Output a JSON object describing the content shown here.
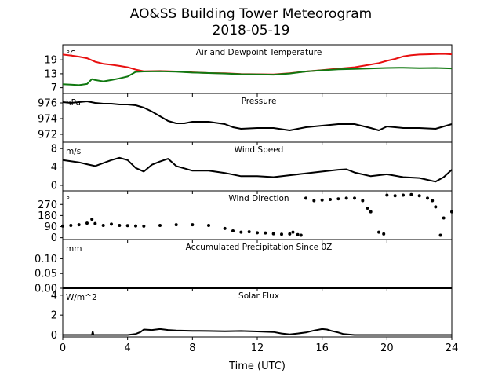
{
  "title_line1": "AO&SS Building Tower Meteorogram",
  "title_line2": "2018-05-19",
  "xlabel": "Time (UTC)",
  "x_ticks": [
    0,
    4,
    8,
    12,
    16,
    20,
    24
  ],
  "x_range": [
    0,
    24
  ],
  "colors": {
    "air_temp": "#e81010",
    "dewpoint": "#107810",
    "black": "#000000"
  },
  "chart_data": [
    {
      "type": "line",
      "title": "Air and Dewpoint Temperature",
      "unit": "°C",
      "ylim": [
        4.5,
        25.5
      ],
      "y_ticks": [
        7,
        13,
        19
      ],
      "series": [
        {
          "color": "#e81010",
          "x": [
            0,
            0.5,
            1,
            1.5,
            2,
            2.5,
            3,
            3.5,
            4,
            4.5,
            5,
            6,
            7,
            8,
            9,
            10,
            11,
            12,
            13,
            14,
            15,
            16,
            17,
            18,
            19,
            19.5,
            20,
            20.5,
            21,
            21.5,
            22,
            22.5,
            23,
            23.5,
            24
          ],
          "y": [
            21.3,
            20.9,
            20.4,
            19.7,
            18.2,
            17.3,
            16.9,
            16.4,
            15.8,
            14.8,
            14.1,
            14.2,
            14.0,
            13.6,
            13.3,
            13.2,
            12.9,
            12.8,
            12.7,
            13.2,
            14.0,
            14.6,
            15.2,
            15.8,
            17.0,
            17.6,
            18.6,
            19.4,
            20.5,
            21.0,
            21.3,
            21.4,
            21.5,
            21.6,
            21.4
          ]
        },
        {
          "color": "#107810",
          "x": [
            0,
            0.5,
            1,
            1.5,
            1.8,
            2,
            2.5,
            3,
            3.5,
            4,
            4.5,
            5,
            6,
            7,
            8,
            9,
            10,
            11,
            12,
            13,
            14,
            15,
            16,
            17,
            18,
            19,
            20,
            21,
            22,
            23,
            24
          ],
          "y": [
            8.5,
            8.3,
            8.1,
            8.6,
            10.7,
            10.3,
            9.7,
            10.3,
            11.0,
            11.8,
            13.8,
            14.0,
            14.1,
            13.9,
            13.5,
            13.3,
            13.1,
            12.8,
            12.7,
            12.6,
            13.1,
            14.0,
            14.5,
            14.9,
            15.1,
            15.3,
            15.5,
            15.6,
            15.4,
            15.5,
            15.3
          ]
        }
      ]
    },
    {
      "type": "line",
      "title": "Pressure",
      "unit": "hPa",
      "ylim": [
        971,
        977.2
      ],
      "y_ticks": [
        972,
        974,
        976
      ],
      "series": [
        {
          "color": "#000000",
          "x": [
            0,
            0.5,
            1,
            1.5,
            2,
            2.5,
            3,
            3.5,
            4,
            4.5,
            5,
            5.5,
            6,
            6.5,
            7,
            7.5,
            8,
            9,
            10,
            10.5,
            11,
            12,
            13,
            14,
            15,
            16,
            17,
            18,
            19,
            19.5,
            20,
            21,
            22,
            23,
            24
          ],
          "y": [
            976.1,
            976.0,
            976.1,
            976.2,
            976.0,
            975.9,
            975.9,
            975.8,
            975.8,
            975.7,
            975.4,
            974.9,
            974.3,
            973.7,
            973.4,
            973.4,
            973.6,
            973.6,
            973.3,
            972.9,
            972.7,
            972.8,
            972.8,
            972.5,
            972.9,
            973.1,
            973.3,
            973.3,
            972.8,
            972.5,
            973.0,
            972.8,
            972.8,
            972.7,
            973.3
          ]
        }
      ]
    },
    {
      "type": "line",
      "title": "Wind Speed",
      "unit": "m/s",
      "ylim": [
        -1.2,
        9.4
      ],
      "y_ticks": [
        0,
        4,
        8
      ],
      "series": [
        {
          "color": "#000000",
          "x": [
            0,
            1,
            1.5,
            2,
            3,
            3.5,
            4,
            4.5,
            5,
            5.5,
            6,
            6.5,
            7,
            8,
            9,
            10,
            11,
            12,
            13,
            14,
            15,
            16,
            17,
            17.5,
            18,
            19,
            20,
            21,
            22,
            23,
            23.5,
            24
          ],
          "y": [
            5.5,
            5.0,
            4.6,
            4.2,
            5.5,
            6.0,
            5.5,
            3.8,
            3.0,
            4.5,
            5.2,
            5.8,
            4.2,
            3.2,
            3.2,
            2.7,
            2.0,
            2.0,
            1.8,
            2.2,
            2.6,
            3.0,
            3.4,
            3.5,
            2.8,
            2.0,
            2.4,
            1.8,
            1.6,
            0.8,
            1.8,
            3.4
          ]
        }
      ]
    },
    {
      "type": "scatter",
      "title": "Wind Direction",
      "unit": "°",
      "ylim": [
        -15,
        380
      ],
      "y_ticks": [
        0,
        90,
        180,
        270
      ],
      "series": [
        {
          "color": "#000000",
          "x": [
            0,
            0.5,
            1,
            1.5,
            1.8,
            2,
            2.5,
            3,
            3.5,
            4,
            4.5,
            5,
            6,
            7,
            8,
            9,
            10,
            10.5,
            11,
            11.5,
            12,
            12.5,
            13,
            13.5,
            14,
            14.2,
            14.5,
            14.7,
            15,
            15.5,
            16,
            16.5,
            17,
            17.5,
            18,
            18.5,
            18.8,
            19,
            19.5,
            19.8,
            20,
            20.5,
            21,
            21.5,
            22,
            22.5,
            22.8,
            23,
            23.3,
            23.5,
            24
          ],
          "y": [
            95,
            100,
            105,
            118,
            150,
            115,
            100,
            110,
            100,
            98,
            96,
            94,
            100,
            105,
            105,
            100,
            75,
            55,
            45,
            48,
            40,
            38,
            32,
            28,
            30,
            45,
            25,
            20,
            320,
            300,
            305,
            310,
            315,
            320,
            320,
            300,
            240,
            210,
            45,
            30,
            345,
            340,
            345,
            350,
            340,
            320,
            300,
            250,
            20,
            160,
            210
          ]
        }
      ]
    },
    {
      "type": "line",
      "title": "Accumulated Precipitation Since 0Z",
      "unit": "mm",
      "ylim": [
        0,
        0.165
      ],
      "y_ticks": [
        0.0,
        0.05,
        0.1
      ],
      "y_tick_labels": [
        "0.00",
        "0.05",
        "0.10"
      ],
      "series": [
        {
          "color": "#000000",
          "x": [
            0,
            24
          ],
          "y": [
            0,
            0
          ]
        }
      ]
    },
    {
      "type": "line",
      "title": "Solar Flux",
      "unit": "W/m^2",
      "ylim": [
        -0.2,
        4.7
      ],
      "y_ticks": [
        0,
        2,
        4
      ],
      "series": [
        {
          "color": "#000000",
          "x": [
            0,
            1,
            1.8,
            1.85,
            1.9,
            2,
            3,
            4,
            4.5,
            4.8,
            5,
            5.5,
            6,
            6.5,
            7,
            8,
            9,
            10,
            11,
            12,
            13,
            13.5,
            14,
            14.5,
            15,
            15.5,
            16,
            16.3,
            16.6,
            17,
            17.3,
            18,
            19,
            20,
            21,
            22,
            23,
            24
          ],
          "y": [
            0,
            0,
            0,
            0.35,
            0,
            0,
            0,
            0,
            0.1,
            0.3,
            0.55,
            0.5,
            0.6,
            0.5,
            0.45,
            0.42,
            0.4,
            0.38,
            0.4,
            0.35,
            0.3,
            0.15,
            0.05,
            0.15,
            0.25,
            0.45,
            0.6,
            0.55,
            0.4,
            0.25,
            0.1,
            0,
            0,
            0,
            0,
            0,
            0,
            0
          ]
        }
      ]
    }
  ]
}
